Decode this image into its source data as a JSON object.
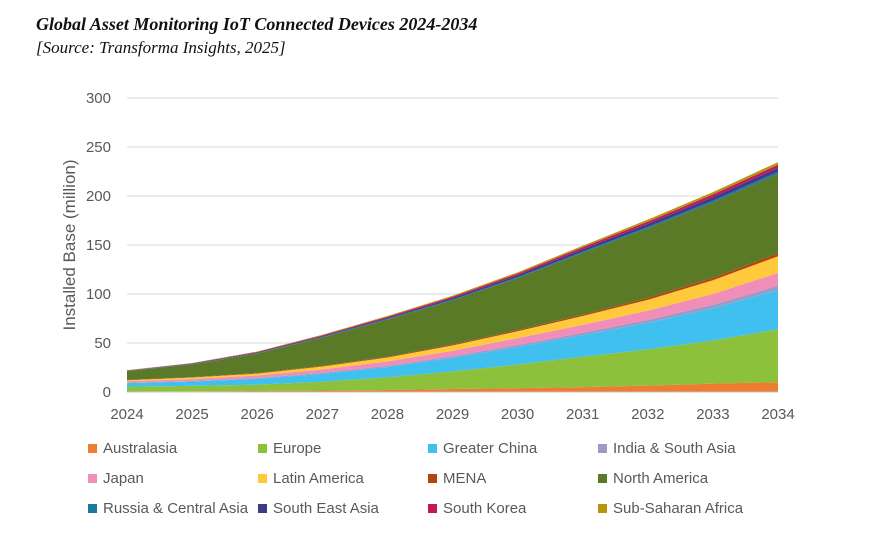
{
  "title": "Global Asset Monitoring IoT Connected Devices 2024-2034",
  "subtitle": "[Source: Transforma Insights, 2025]",
  "chart_data": {
    "type": "area",
    "stacked": true,
    "ylabel": "Installed Base (million)",
    "xlabel": "",
    "ylim": [
      0,
      300
    ],
    "yticks": [
      0,
      50,
      100,
      150,
      200,
      250,
      300
    ],
    "grid": true,
    "legend_position": "bottom",
    "categories": [
      "2024",
      "2025",
      "2026",
      "2027",
      "2028",
      "2029",
      "2030",
      "2031",
      "2032",
      "2033",
      "2034"
    ],
    "series": [
      {
        "name": "Australasia",
        "color": "#ED7D31",
        "values": [
          0.5,
          0.7,
          1,
          1.5,
          2,
          3,
          4,
          5,
          6.5,
          8.5,
          10
        ]
      },
      {
        "name": "Europe",
        "color": "#8DC03B",
        "values": [
          5,
          5.5,
          6.5,
          9,
          13,
          18,
          24,
          31,
          37,
          44,
          54
        ]
      },
      {
        "name": "Greater China",
        "color": "#3FC0EE",
        "values": [
          3.5,
          4.5,
          6,
          8,
          10.5,
          14,
          18,
          22,
          27,
          33,
          40
        ]
      },
      {
        "name": "India & South Asia",
        "color": "#9E9AC8",
        "values": [
          0.5,
          0.6,
          0.8,
          1,
          1.2,
          1.5,
          2,
          2.5,
          3,
          3.5,
          4.5
        ]
      },
      {
        "name": "Japan",
        "color": "#F08DB8",
        "values": [
          1.5,
          2,
          2.5,
          3.5,
          4.5,
          5.5,
          7,
          8,
          9.5,
          11,
          13
        ]
      },
      {
        "name": "Latin America",
        "color": "#FFC93C",
        "values": [
          1,
          1.5,
          2,
          3,
          4,
          5.5,
          7,
          9,
          11,
          14,
          17
        ]
      },
      {
        "name": "MENA",
        "color": "#B4450F",
        "values": [
          0.3,
          0.4,
          0.5,
          0.6,
          0.8,
          1,
          1.2,
          1.5,
          2,
          2.5,
          3
        ]
      },
      {
        "name": "North America",
        "color": "#5B7A28",
        "values": [
          9,
          13,
          20,
          29,
          38,
          45,
          53,
          63,
          71,
          77,
          81
        ]
      },
      {
        "name": "Russia & Central Asia",
        "color": "#1F77A0",
        "values": [
          0.2,
          0.3,
          0.4,
          0.5,
          0.6,
          0.8,
          1,
          1.2,
          1.5,
          1.8,
          2.2
        ]
      },
      {
        "name": "South East Asia",
        "color": "#3D3A8C",
        "values": [
          0.3,
          0.4,
          0.6,
          0.9,
          1.2,
          1.6,
          2,
          2.5,
          3,
          3.5,
          4
        ]
      },
      {
        "name": "South Korea",
        "color": "#C2185B",
        "values": [
          0.3,
          0.4,
          0.6,
          0.8,
          1,
          1.3,
          1.6,
          2,
          2.4,
          2.8,
          3.2
        ]
      },
      {
        "name": "Sub-Saharan Africa",
        "color": "#B8960C",
        "values": [
          0.2,
          0.3,
          0.4,
          0.6,
          0.8,
          1,
          1.3,
          1.6,
          2,
          2.3,
          2.7
        ]
      }
    ]
  }
}
